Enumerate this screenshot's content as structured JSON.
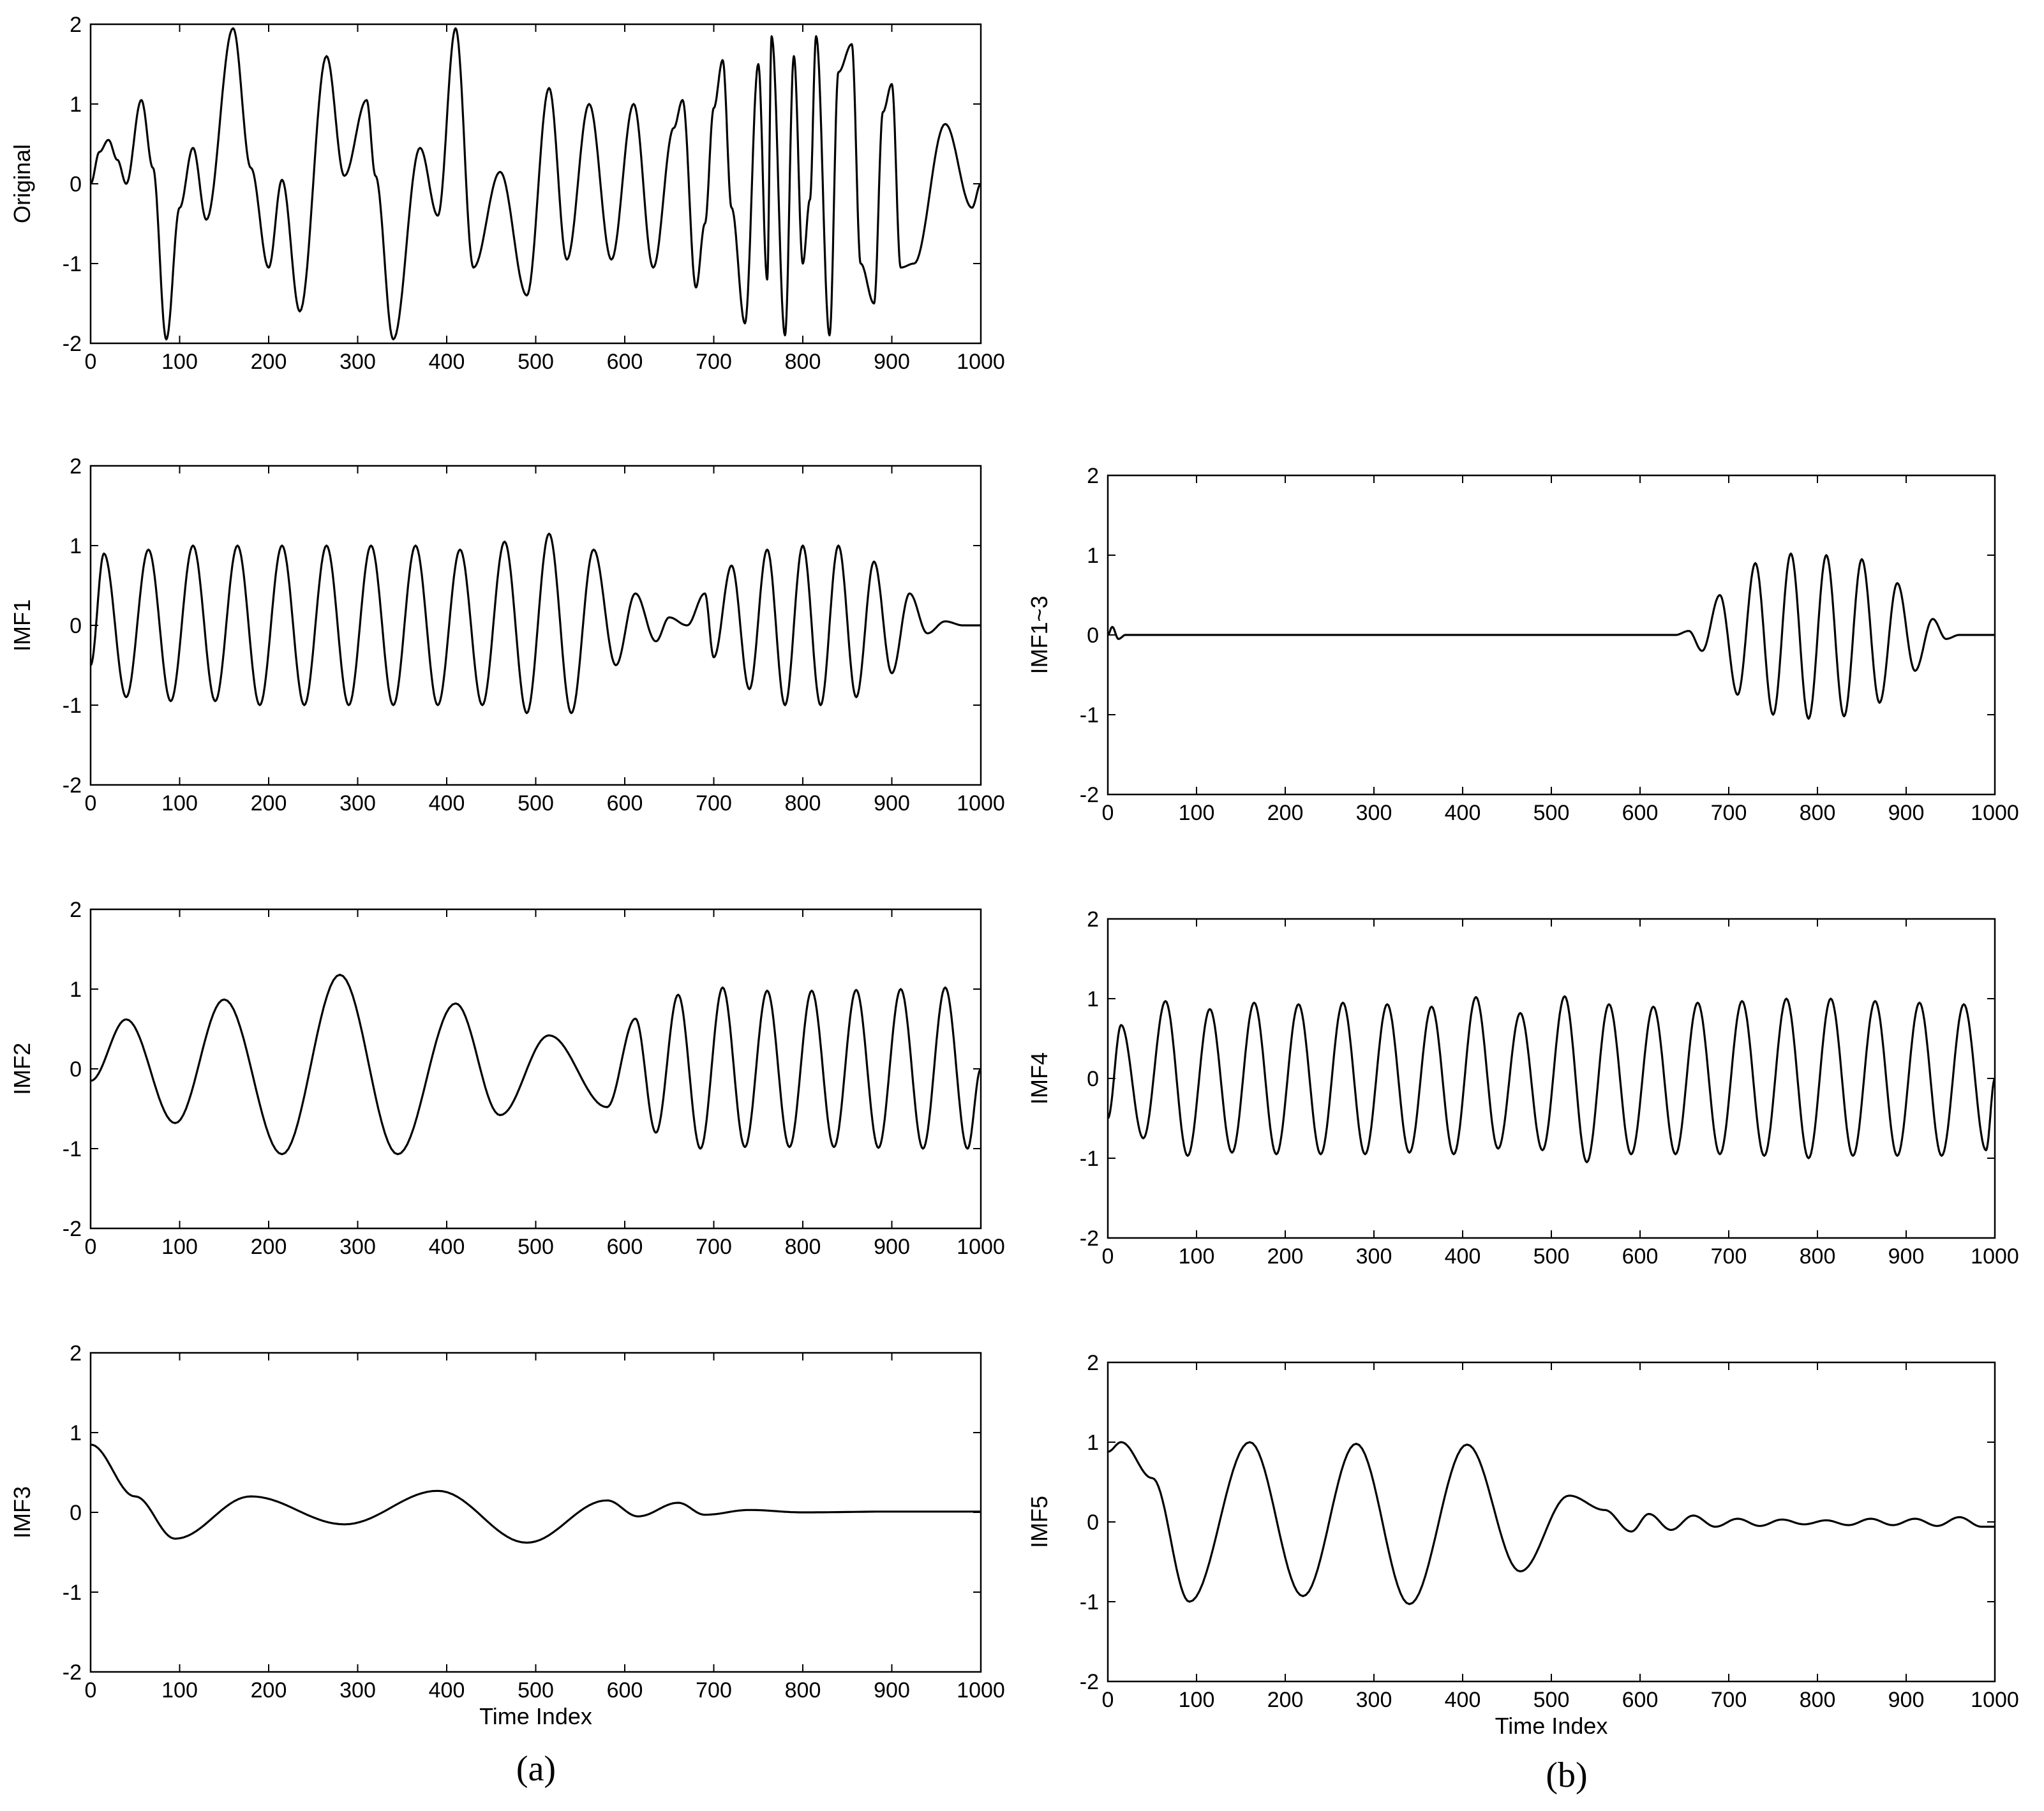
{
  "chart_data": [
    {
      "id": "original",
      "type": "line",
      "ylabel": "Original",
      "xlabel": "",
      "xlim": [
        0,
        1000
      ],
      "ylim": [
        -2,
        2
      ],
      "xticks": [
        "0",
        "100",
        "200",
        "300",
        "400",
        "500",
        "600",
        "700",
        "800",
        "900",
        "1000"
      ],
      "yticks": [
        "-2",
        "-1",
        "0",
        "1",
        "2"
      ],
      "x": [
        0,
        10,
        20,
        30,
        40,
        57,
        70,
        85,
        100,
        115,
        130,
        160,
        180,
        200,
        215,
        235,
        265,
        285,
        310,
        320,
        340,
        370,
        390,
        410,
        430,
        460,
        490,
        515,
        535,
        560,
        585,
        610,
        632,
        655,
        665,
        680,
        690,
        700,
        710,
        720,
        735,
        750,
        760,
        765,
        780,
        790,
        800,
        808,
        815,
        830,
        840,
        855,
        865,
        880,
        890,
        900,
        910,
        925,
        960,
        990,
        1000
      ],
      "series": [
        {
          "name": "Original",
          "values": [
            0,
            0.4,
            0.55,
            0.3,
            0,
            1.05,
            0.2,
            -1.95,
            -0.3,
            0.45,
            -0.45,
            1.95,
            0.2,
            -1.05,
            0.05,
            -1.6,
            1.6,
            0.1,
            1.05,
            0.1,
            -1.95,
            0.45,
            -0.4,
            1.95,
            -1.05,
            0.15,
            -1.4,
            1.2,
            -0.95,
            1.0,
            -0.95,
            1.0,
            -1.05,
            0.7,
            1.05,
            -1.3,
            -0.5,
            0.95,
            1.55,
            -0.3,
            -1.75,
            1.5,
            -1.2,
            1.85,
            -1.9,
            1.6,
            -1.0,
            -0.2,
            1.85,
            -1.9,
            1.4,
            1.75,
            -1.0,
            -1.5,
            0.9,
            1.25,
            -1.05,
            -1.0,
            0.75,
            -0.3,
            0
          ]
        }
      ]
    },
    {
      "id": "imf1",
      "type": "line",
      "ylabel": "IMF1",
      "xlabel": "",
      "xlim": [
        0,
        1000
      ],
      "ylim": [
        -2,
        2
      ],
      "xticks": [
        "0",
        "100",
        "200",
        "300",
        "400",
        "500",
        "600",
        "700",
        "800",
        "900",
        "1000"
      ],
      "yticks": [
        "-2",
        "-1",
        "0",
        "1",
        "2"
      ],
      "x": [
        0,
        15,
        40,
        65,
        90,
        115,
        140,
        165,
        190,
        215,
        240,
        265,
        290,
        315,
        340,
        365,
        390,
        415,
        440,
        465,
        490,
        515,
        540,
        565,
        590,
        612,
        635,
        650,
        670,
        690,
        700,
        720,
        740,
        760,
        780,
        800,
        820,
        840,
        860,
        880,
        900,
        920,
        940,
        960,
        980,
        1000
      ],
      "series": [
        {
          "name": "IMF1",
          "values": [
            -0.5,
            0.9,
            -0.9,
            0.95,
            -0.95,
            1.0,
            -0.95,
            1.0,
            -1.0,
            1.0,
            -1.0,
            1.0,
            -1.0,
            1.0,
            -1.0,
            1.0,
            -1.0,
            0.95,
            -1.0,
            1.05,
            -1.1,
            1.15,
            -1.1,
            0.95,
            -0.5,
            0.4,
            -0.2,
            0.1,
            0.0,
            0.4,
            -0.4,
            0.75,
            -0.8,
            0.95,
            -1.0,
            1.0,
            -1.0,
            1.0,
            -0.9,
            0.8,
            -0.6,
            0.4,
            -0.1,
            0.05,
            0.0,
            0.0
          ]
        }
      ]
    },
    {
      "id": "imf2",
      "type": "line",
      "ylabel": "IMF2",
      "xlabel": "",
      "xlim": [
        0,
        1000
      ],
      "ylim": [
        -2,
        2
      ],
      "xticks": [
        "0",
        "100",
        "200",
        "300",
        "400",
        "500",
        "600",
        "700",
        "800",
        "900",
        "1000"
      ],
      "yticks": [
        "-2",
        "-1",
        "0",
        "1",
        "2"
      ],
      "x": [
        0,
        40,
        95,
        150,
        215,
        280,
        345,
        410,
        460,
        515,
        580,
        612,
        635,
        660,
        685,
        710,
        735,
        760,
        785,
        810,
        835,
        860,
        885,
        910,
        935,
        960,
        985,
        1000
      ],
      "series": [
        {
          "name": "IMF2",
          "values": [
            -0.15,
            0.62,
            -0.68,
            0.87,
            -1.07,
            1.18,
            -1.07,
            0.82,
            -0.58,
            0.42,
            -0.48,
            0.63,
            -0.8,
            0.93,
            -1.0,
            1.02,
            -0.98,
            0.98,
            -0.98,
            0.98,
            -0.98,
            0.99,
            -0.99,
            1.0,
            -1.0,
            1.02,
            -1.0,
            0.0
          ]
        }
      ]
    },
    {
      "id": "imf3",
      "type": "line",
      "ylabel": "IMF3",
      "xlabel": "Time Index",
      "xlim": [
        0,
        1000
      ],
      "ylim": [
        -2,
        2
      ],
      "xticks": [
        "0",
        "100",
        "200",
        "300",
        "400",
        "500",
        "600",
        "700",
        "800",
        "900",
        "1000"
      ],
      "yticks": [
        "-2",
        "-1",
        "0",
        "1",
        "2"
      ],
      "x": [
        0,
        50,
        95,
        180,
        285,
        390,
        490,
        580,
        615,
        660,
        690,
        740,
        800,
        900,
        1000
      ],
      "series": [
        {
          "name": "IMF3",
          "values": [
            0.85,
            0.2,
            -0.33,
            0.2,
            -0.15,
            0.27,
            -0.38,
            0.15,
            -0.05,
            0.12,
            -0.03,
            0.03,
            0.0,
            0.01,
            0.01
          ]
        }
      ]
    },
    {
      "id": "imf1-3",
      "type": "line",
      "ylabel": "IMF1~3",
      "xlabel": "",
      "xlim": [
        0,
        1000
      ],
      "ylim": [
        -2,
        2
      ],
      "xticks": [
        "0",
        "100",
        "200",
        "300",
        "400",
        "500",
        "600",
        "700",
        "800",
        "900",
        "1000"
      ],
      "yticks": [
        "-2",
        "-1",
        "0",
        "1",
        "2"
      ],
      "x": [
        0,
        5,
        12,
        20,
        640,
        655,
        670,
        690,
        710,
        730,
        750,
        770,
        790,
        810,
        830,
        850,
        870,
        890,
        910,
        930,
        945,
        960,
        1000
      ],
      "series": [
        {
          "name": "IMF1~3",
          "values": [
            0,
            0.1,
            -0.05,
            0,
            0,
            0.05,
            -0.2,
            0.5,
            -0.75,
            0.9,
            -1.0,
            1.02,
            -1.05,
            1.0,
            -1.02,
            0.95,
            -0.85,
            0.65,
            -0.45,
            0.2,
            -0.05,
            0.0,
            0.0
          ]
        }
      ]
    },
    {
      "id": "imf4",
      "type": "line",
      "ylabel": "IMF4",
      "xlabel": "",
      "xlim": [
        0,
        1000
      ],
      "ylim": [
        -2,
        2
      ],
      "xticks": [
        "0",
        "100",
        "200",
        "300",
        "400",
        "500",
        "600",
        "700",
        "800",
        "900",
        "1000"
      ],
      "yticks": [
        "-2",
        "-1",
        "0",
        "1",
        "2"
      ],
      "x": [
        0,
        15,
        40,
        65,
        90,
        115,
        140,
        165,
        190,
        215,
        240,
        265,
        290,
        315,
        340,
        365,
        390,
        415,
        440,
        465,
        490,
        515,
        540,
        565,
        590,
        615,
        640,
        665,
        690,
        715,
        740,
        765,
        790,
        815,
        840,
        865,
        890,
        915,
        940,
        965,
        990,
        1000
      ],
      "series": [
        {
          "name": "IMF4",
          "values": [
            -0.5,
            0.67,
            -0.75,
            0.97,
            -0.97,
            0.87,
            -0.93,
            0.95,
            -0.95,
            0.93,
            -0.95,
            0.95,
            -0.95,
            0.93,
            -0.93,
            0.9,
            -0.95,
            1.02,
            -0.88,
            0.82,
            -0.9,
            1.03,
            -1.05,
            0.93,
            -0.95,
            0.9,
            -0.95,
            0.95,
            -0.95,
            0.97,
            -0.97,
            1.0,
            -1.0,
            1.0,
            -0.97,
            0.97,
            -0.97,
            0.95,
            -0.97,
            0.93,
            -0.9,
            0.0
          ]
        }
      ]
    },
    {
      "id": "imf5",
      "type": "line",
      "ylabel": "IMF5",
      "xlabel": "Time Index",
      "xlim": [
        0,
        1000
      ],
      "ylim": [
        -2,
        2
      ],
      "xticks": [
        "0",
        "100",
        "200",
        "300",
        "400",
        "500",
        "600",
        "700",
        "800",
        "900",
        "1000"
      ],
      "yticks": [
        "-2",
        "-1",
        "0",
        "1",
        "2"
      ],
      "x": [
        0,
        15,
        50,
        92,
        160,
        220,
        280,
        340,
        405,
        465,
        520,
        560,
        590,
        610,
        635,
        660,
        685,
        710,
        735,
        760,
        785,
        810,
        835,
        860,
        885,
        910,
        935,
        960,
        985,
        1000
      ],
      "series": [
        {
          "name": "IMF5",
          "values": [
            0.88,
            1.0,
            0.55,
            -1.0,
            1.0,
            -0.93,
            0.98,
            -1.03,
            0.97,
            -0.62,
            0.33,
            0.15,
            -0.12,
            0.1,
            -0.1,
            0.08,
            -0.06,
            0.04,
            -0.05,
            0.03,
            -0.03,
            0.02,
            -0.04,
            0.04,
            -0.04,
            0.04,
            -0.05,
            0.06,
            -0.06,
            -0.06
          ]
        }
      ]
    }
  ],
  "captions": {
    "a": "(a)",
    "b": "(b)"
  },
  "colors": {
    "line": "#000000",
    "axis": "#000000",
    "background": "#ffffff"
  }
}
